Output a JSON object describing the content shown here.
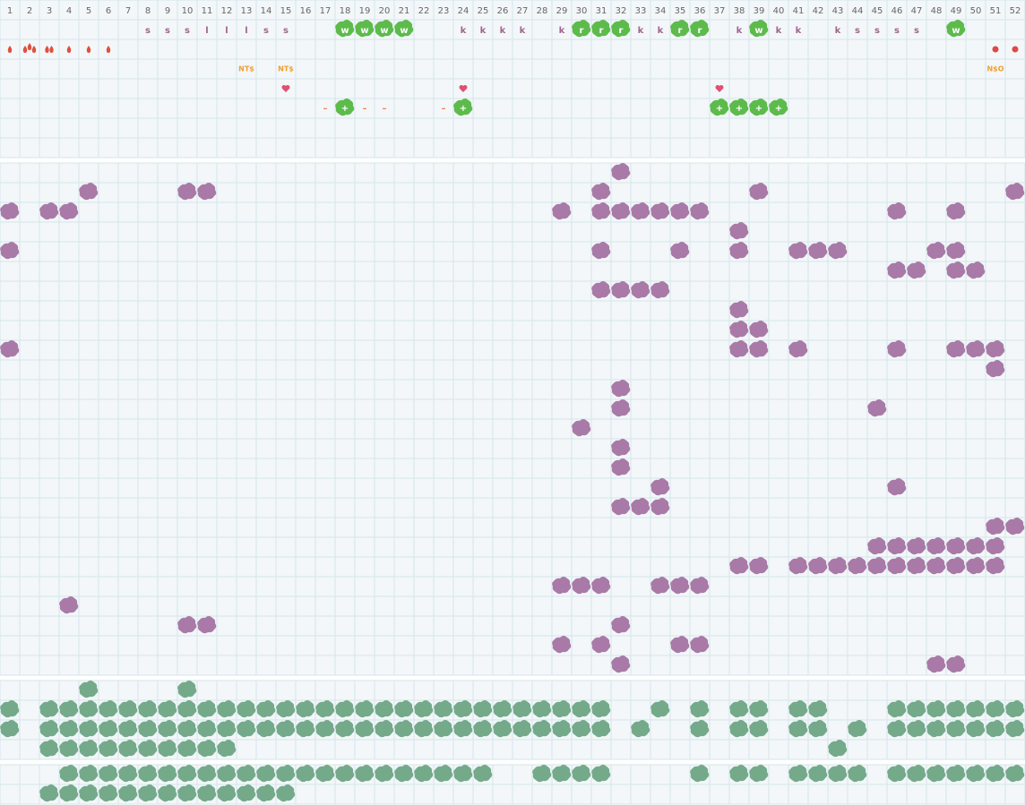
{
  "header": {
    "columns": [
      1,
      2,
      3,
      4,
      5,
      6,
      7,
      8,
      9,
      10,
      11,
      12,
      13,
      14,
      15,
      16,
      17,
      18,
      19,
      20,
      21,
      22,
      23,
      24,
      25,
      26,
      27,
      28,
      29,
      30,
      31,
      32,
      33,
      34,
      35,
      36,
      37,
      38,
      39,
      40,
      41,
      42,
      43,
      44,
      45,
      46,
      47,
      48,
      49,
      50,
      51,
      52
    ]
  },
  "top": {
    "rows": [
      [
        null,
        null,
        null,
        null,
        null,
        null,
        null,
        "s",
        "s",
        "s",
        "l",
        "l",
        "l",
        "s",
        "s",
        null,
        null,
        "w",
        "w",
        "w",
        "w",
        null,
        null,
        "k",
        "k",
        "k",
        "k",
        null,
        "k",
        "r",
        "r",
        "r",
        "k",
        "k",
        "r",
        "r",
        null,
        "k",
        "w",
        "k",
        "k",
        null,
        "k",
        "s",
        "s",
        "s",
        "s",
        null,
        "w",
        null,
        null,
        null
      ],
      [
        null,
        null,
        null,
        null,
        null,
        null,
        null,
        null,
        null,
        null,
        null,
        null,
        "NT$",
        null,
        "NT$",
        null,
        null,
        null,
        null,
        null,
        null,
        null,
        null,
        null,
        null,
        null,
        null,
        null,
        null,
        null,
        null,
        null,
        null,
        null,
        null,
        null,
        null,
        null,
        null,
        null,
        null,
        null,
        null,
        null,
        null,
        null,
        null,
        null,
        null,
        null,
        "N$O",
        null
      ],
      [
        null,
        null,
        null,
        null,
        null,
        null,
        null,
        null,
        null,
        null,
        null,
        null,
        null,
        null,
        null,
        null,
        "–",
        "+",
        "–",
        "–",
        null,
        null,
        "–",
        "+",
        null,
        null,
        null,
        null,
        null,
        null,
        null,
        null,
        null,
        null,
        null,
        null,
        "+",
        "+",
        "+",
        "+",
        null,
        null,
        null,
        null,
        null,
        null,
        null,
        null,
        null,
        null,
        null,
        null
      ]
    ]
  }
}
